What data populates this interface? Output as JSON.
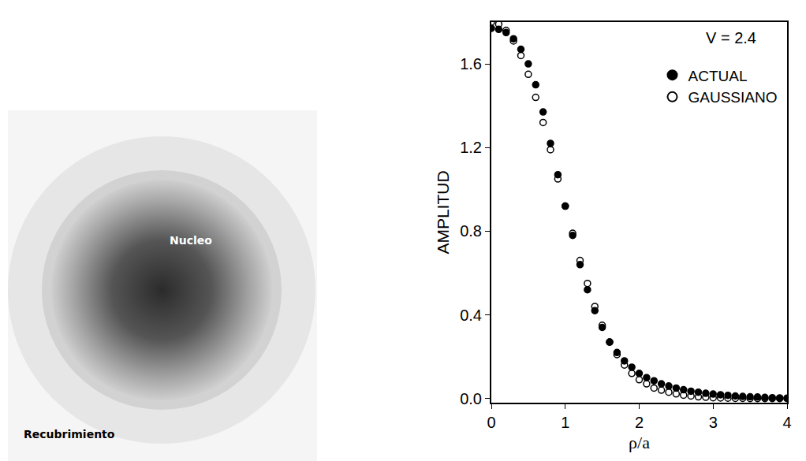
{
  "chart_data": {
    "type": "scatter",
    "x_label": "ρ/a",
    "y_label": "AMPLITUD",
    "annotation": "V = 2.4",
    "x": [
      0,
      0.1,
      0.2,
      0.3,
      0.4,
      0.5,
      0.6,
      0.7,
      0.8,
      0.9,
      1.0,
      1.1,
      1.2,
      1.3,
      1.4,
      1.5,
      1.6,
      1.7,
      1.8,
      1.9,
      2.0,
      2.1,
      2.2,
      2.3,
      2.4,
      2.5,
      2.6,
      2.7,
      2.8,
      2.9,
      3.0,
      3.1,
      3.2,
      3.3,
      3.4,
      3.5,
      3.6,
      3.7,
      3.8,
      3.9,
      4.0
    ],
    "series": [
      {
        "name": "ACTUAL",
        "color": "#000000",
        "marker": "filled circle",
        "values": [
          1.77,
          1.765,
          1.75,
          1.72,
          1.67,
          1.6,
          1.5,
          1.37,
          1.22,
          1.07,
          0.92,
          0.78,
          0.64,
          0.52,
          0.42,
          0.34,
          0.27,
          0.22,
          0.18,
          0.15,
          0.12,
          0.1,
          0.085,
          0.07,
          0.06,
          0.05,
          0.042,
          0.035,
          0.03,
          0.025,
          0.021,
          0.018,
          0.015,
          0.012,
          0.01,
          0.008,
          0.007,
          0.005,
          0.004,
          0.003,
          0.002
        ]
      },
      {
        "name": "GAUSSIANO",
        "color": "#000000",
        "marker": "open circle",
        "values": [
          1.8,
          1.79,
          1.76,
          1.71,
          1.64,
          1.55,
          1.44,
          1.32,
          1.19,
          1.05,
          0.92,
          0.79,
          0.66,
          0.55,
          0.44,
          0.35,
          0.27,
          0.21,
          0.16,
          0.12,
          0.09,
          0.07,
          0.05,
          0.04,
          0.03,
          0.022,
          0.016,
          0.012,
          0.008,
          0.006,
          0.004,
          0.003,
          0.002,
          0.001,
          0.001,
          0,
          0,
          0,
          0,
          0,
          0
        ]
      }
    ],
    "xlim": [
      0,
      4
    ],
    "xticks": [
      0,
      1,
      2,
      3,
      4
    ],
    "ylim": [
      -0.02,
      1.8
    ],
    "yticks": [
      {
        "value": 0,
        "label": "0.0"
      },
      0.4,
      0.8,
      1.2,
      1.6
    ],
    "grid": false,
    "legend": "top-right"
  },
  "diagram": {
    "core_label": "Nucleo",
    "cladding_label": "Recubrimiento"
  }
}
